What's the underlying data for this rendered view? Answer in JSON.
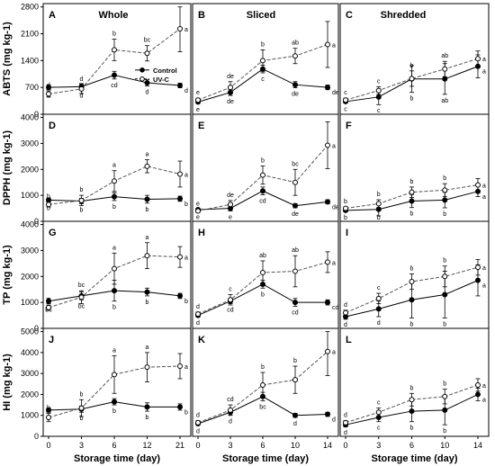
{
  "figure": {
    "column_headers": [
      "Whole",
      "Sliced",
      "Shredded"
    ],
    "x_label": "Storage time (day)"
  },
  "chart_data": [
    {
      "type": "line",
      "panel": "A",
      "row": 0,
      "col": 0,
      "ylabel": "ABTS (mg kg-1)",
      "xlabel": "",
      "ylim": [
        0,
        2800
      ],
      "yticks": [
        0,
        700,
        1400,
        2100,
        2800
      ],
      "x": [
        "0",
        "3",
        "6",
        "12",
        "21"
      ],
      "legend": "top-right",
      "series": [
        {
          "name": "Control",
          "values": [
            700,
            720,
            1020,
            820,
            750
          ],
          "err": [
            60,
            80,
            100,
            80,
            60
          ],
          "letters": [
            "d",
            "d",
            "cd",
            "d",
            "d"
          ]
        },
        {
          "name": "UV-C",
          "values": [
            530,
            660,
            1680,
            1590,
            2230
          ],
          "err": [
            80,
            120,
            280,
            200,
            600
          ],
          "letters": [
            "d",
            "d",
            "b",
            "bc",
            "a"
          ]
        }
      ]
    },
    {
      "type": "line",
      "panel": "B",
      "row": 0,
      "col": 1,
      "ylabel": "",
      "xlabel": "",
      "ylim": [
        0,
        2800
      ],
      "x": [
        "0",
        "3",
        "6",
        "10",
        "14"
      ],
      "series": [
        {
          "name": "Control",
          "values": [
            320,
            570,
            1180,
            770,
            700
          ],
          "err": [
            40,
            80,
            100,
            80,
            60
          ],
          "letters": [
            "e",
            "de",
            "c",
            "de",
            "de"
          ]
        },
        {
          "name": "UV-C",
          "values": [
            370,
            700,
            1400,
            1520,
            1820
          ],
          "err": [
            50,
            150,
            280,
            200,
            600
          ],
          "letters": [
            "e",
            "de",
            "b",
            "ab",
            "a"
          ]
        }
      ]
    },
    {
      "type": "line",
      "panel": "C",
      "row": 0,
      "col": 2,
      "ylabel": "",
      "xlabel": "",
      "ylim": [
        0,
        2800
      ],
      "x": [
        "0",
        "3",
        "6",
        "10",
        "14"
      ],
      "series": [
        {
          "name": "Control",
          "values": [
            330,
            450,
            920,
            920,
            1250
          ],
          "err": [
            40,
            200,
            350,
            400,
            300
          ],
          "letters": [
            "c",
            "c",
            "b",
            "ab",
            "a"
          ]
        },
        {
          "name": "UV-C",
          "values": [
            370,
            620,
            930,
            1180,
            1450
          ],
          "err": [
            50,
            100,
            200,
            200,
            200
          ],
          "letters": [
            "c",
            "c",
            "b",
            "ab",
            "a"
          ]
        }
      ]
    },
    {
      "type": "line",
      "panel": "D",
      "row": 1,
      "col": 0,
      "ylabel": "DPPH (mg kg-1)",
      "xlabel": "",
      "ylim": [
        0,
        4000
      ],
      "yticks": [
        0,
        1000,
        2000,
        3000,
        4000
      ],
      "x": [
        "0",
        "3",
        "6",
        "12",
        "21"
      ],
      "series": [
        {
          "name": "Control",
          "values": [
            820,
            780,
            950,
            850,
            870
          ],
          "err": [
            80,
            100,
            150,
            150,
            100
          ],
          "letters": [
            "b",
            "b",
            "b",
            "b",
            "b"
          ]
        },
        {
          "name": "UV-C",
          "values": [
            650,
            800,
            1550,
            2120,
            1820
          ],
          "err": [
            100,
            200,
            400,
            250,
            500
          ],
          "letters": [
            "b",
            "b",
            "a",
            "a",
            "a"
          ]
        }
      ]
    },
    {
      "type": "line",
      "panel": "E",
      "row": 1,
      "col": 1,
      "ylabel": "",
      "xlabel": "",
      "ylim": [
        0,
        4000
      ],
      "x": [
        "0",
        "3",
        "6",
        "10",
        "14"
      ],
      "series": [
        {
          "name": "Control",
          "values": [
            450,
            500,
            1170,
            600,
            750
          ],
          "err": [
            50,
            100,
            150,
            80,
            80
          ],
          "letters": [
            "e",
            "e",
            "cd",
            "de",
            "de"
          ]
        },
        {
          "name": "UV-C",
          "values": [
            400,
            650,
            1780,
            1500,
            2930
          ],
          "err": [
            60,
            150,
            350,
            500,
            900
          ],
          "letters": [
            "e",
            "de",
            "b",
            "bc",
            "a"
          ]
        }
      ]
    },
    {
      "type": "line",
      "panel": "F",
      "row": 1,
      "col": 2,
      "ylabel": "",
      "xlabel": "",
      "ylim": [
        0,
        4000
      ],
      "x": [
        "0",
        "3",
        "6",
        "10",
        "14"
      ],
      "series": [
        {
          "name": "Control",
          "values": [
            420,
            460,
            780,
            820,
            1150
          ],
          "err": [
            60,
            250,
            250,
            300,
            200
          ],
          "letters": [
            "b",
            "b",
            "b",
            "b",
            "a"
          ]
        },
        {
          "name": "UV-C",
          "values": [
            500,
            680,
            1120,
            1200,
            1400
          ],
          "err": [
            60,
            150,
            200,
            250,
            250
          ],
          "letters": [
            "b",
            "b",
            "b",
            "b",
            "a"
          ]
        }
      ]
    },
    {
      "type": "line",
      "panel": "G",
      "row": 2,
      "col": 0,
      "ylabel": "TP (mg kg-1)",
      "xlabel": "",
      "ylim": [
        0,
        4000
      ],
      "yticks": [
        0,
        1000,
        2000,
        3000,
        4000
      ],
      "x": [
        "0",
        "3",
        "6",
        "12",
        "21"
      ],
      "series": [
        {
          "name": "Control",
          "values": [
            1050,
            1250,
            1450,
            1400,
            1250
          ],
          "err": [
            100,
            150,
            400,
            150,
            100
          ],
          "letters": [
            "bc",
            "bc",
            "b",
            "b",
            "b"
          ]
        },
        {
          "name": "UV-C",
          "values": [
            800,
            1200,
            2300,
            2800,
            2750
          ],
          "err": [
            100,
            250,
            600,
            500,
            400
          ],
          "letters": [
            "c",
            "bc",
            "a",
            "a",
            "a"
          ]
        }
      ]
    },
    {
      "type": "line",
      "panel": "H",
      "row": 2,
      "col": 1,
      "ylabel": "",
      "xlabel": "",
      "ylim": [
        0,
        4000
      ],
      "x": [
        "0",
        "3",
        "6",
        "10",
        "14"
      ],
      "series": [
        {
          "name": "Control",
          "values": [
            500,
            1050,
            1700,
            1000,
            1000
          ],
          "err": [
            50,
            100,
            150,
            150,
            100
          ],
          "letters": [
            "d",
            "cd",
            "b",
            "cd",
            "cd"
          ]
        },
        {
          "name": "UV-C",
          "values": [
            550,
            1100,
            2150,
            2200,
            2550
          ],
          "err": [
            80,
            200,
            450,
            600,
            400
          ],
          "letters": [
            "d",
            "c",
            "ab",
            "ab",
            "a"
          ]
        }
      ]
    },
    {
      "type": "line",
      "panel": "I",
      "row": 2,
      "col": 2,
      "ylabel": "",
      "xlabel": "",
      "ylim": [
        0,
        4000
      ],
      "x": [
        "0",
        "3",
        "6",
        "10",
        "14"
      ],
      "series": [
        {
          "name": "Control",
          "values": [
            450,
            750,
            1100,
            1300,
            1850
          ],
          "err": [
            100,
            300,
            700,
            900,
            600
          ],
          "letters": [
            "d",
            "d",
            "b",
            "b",
            "a"
          ]
        },
        {
          "name": "UV-C",
          "values": [
            600,
            1150,
            1800,
            2000,
            2350
          ],
          "err": [
            100,
            200,
            300,
            400,
            300
          ],
          "letters": [
            "d",
            "c",
            "b",
            "b",
            "a"
          ]
        }
      ]
    },
    {
      "type": "line",
      "panel": "J",
      "row": 3,
      "col": 0,
      "ylabel": "HI (mg kg-1)",
      "xlabel": "Storage time (day)",
      "ylim": [
        0,
        5000
      ],
      "yticks": [
        0,
        1000,
        2000,
        3000,
        4000,
        5000
      ],
      "x": [
        "0",
        "3",
        "6",
        "12",
        "21"
      ],
      "series": [
        {
          "name": "Control",
          "values": [
            1250,
            1300,
            1650,
            1400,
            1400
          ],
          "err": [
            100,
            150,
            150,
            200,
            150
          ],
          "letters": [
            "b",
            "b",
            "b",
            "b",
            "b"
          ]
        },
        {
          "name": "UV-C",
          "values": [
            900,
            1350,
            2950,
            3300,
            3350
          ],
          "err": [
            200,
            400,
            900,
            700,
            600
          ],
          "letters": [
            "b",
            "b",
            "a",
            "a",
            "a"
          ]
        }
      ]
    },
    {
      "type": "line",
      "panel": "K",
      "row": 3,
      "col": 1,
      "ylabel": "",
      "xlabel": "Storage time (day)",
      "ylim": [
        0,
        5000
      ],
      "x": [
        "0",
        "3",
        "6",
        "10",
        "14"
      ],
      "series": [
        {
          "name": "Control",
          "values": [
            600,
            1150,
            1900,
            1000,
            1050
          ],
          "err": [
            60,
            150,
            200,
            100,
            100
          ],
          "letters": [
            "d",
            "d",
            "bc",
            "d",
            "d"
          ]
        },
        {
          "name": "UV-C",
          "values": [
            650,
            1250,
            2450,
            2700,
            4050
          ],
          "err": [
            100,
            250,
            600,
            650,
            1150
          ],
          "letters": [
            "d",
            "cd",
            "b",
            "b",
            "a"
          ]
        }
      ]
    },
    {
      "type": "line",
      "panel": "L",
      "row": 3,
      "col": 2,
      "ylabel": "",
      "xlabel": "Storage time (day)",
      "ylim": [
        0,
        5000
      ],
      "x": [
        "0",
        "3",
        "6",
        "10",
        "14"
      ],
      "series": [
        {
          "name": "Control",
          "values": [
            550,
            900,
            1200,
            1250,
            2000
          ],
          "err": [
            100,
            200,
            500,
            700,
            300
          ],
          "letters": [
            "d",
            "c",
            "b",
            "b",
            "a"
          ]
        },
        {
          "name": "UV-C",
          "values": [
            650,
            1150,
            1750,
            1900,
            2450
          ],
          "err": [
            100,
            200,
            300,
            350,
            300
          ],
          "letters": [
            "d",
            "c",
            "b",
            "b",
            "a"
          ]
        }
      ]
    }
  ]
}
